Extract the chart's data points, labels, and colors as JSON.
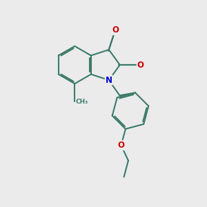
{
  "bg_color": "#ebebeb",
  "bond_color": "#3a7a6a",
  "bond_width": 1.5,
  "atom_colors": {
    "N": "#0000cc",
    "O": "#cc0000"
  }
}
